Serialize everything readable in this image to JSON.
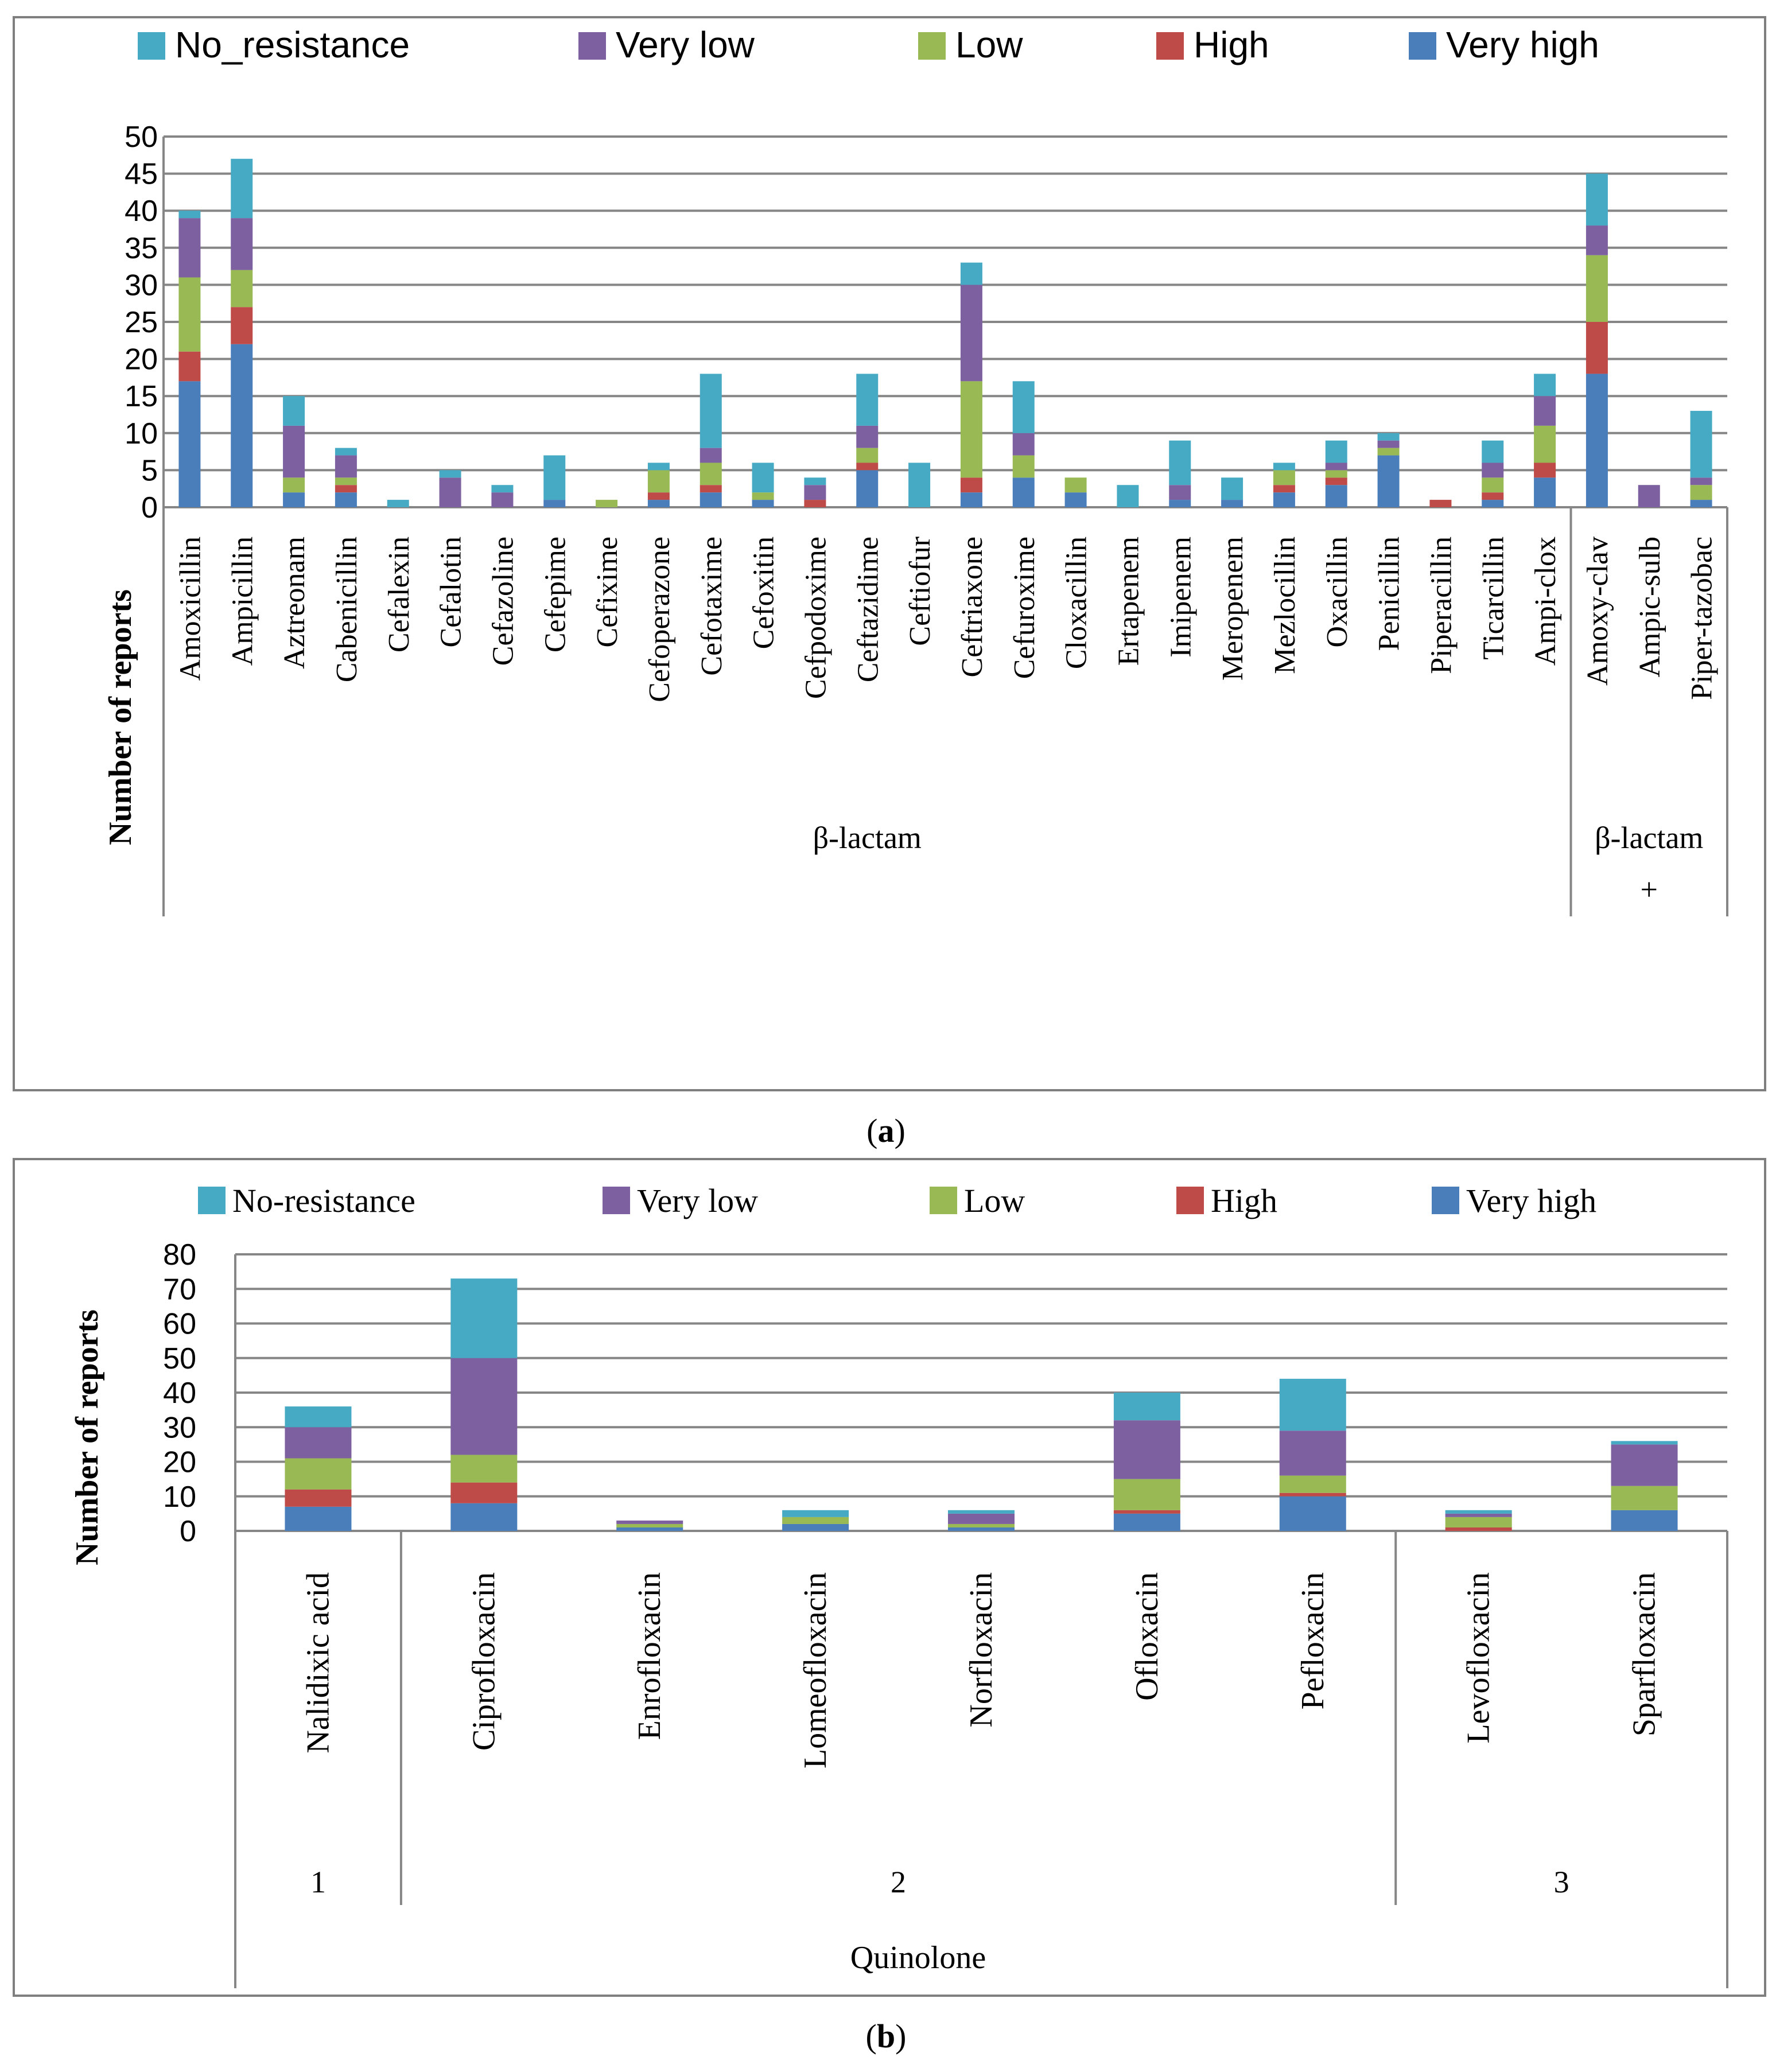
{
  "colors": {
    "very_high": "#4a7ebb",
    "high": "#be4b48",
    "low": "#98b954",
    "very_low": "#7d60a0",
    "no_resistance": "#46aac5",
    "grid": "#868686",
    "frame": "#7f7f7f",
    "text": "#000000"
  },
  "chart_data": [
    {
      "type": "bar",
      "stacked": true,
      "caption": "(a)",
      "caption_letter": "a",
      "title": "",
      "xlabel": "",
      "ylabel": "Number of reports",
      "ylim": [
        0,
        50
      ],
      "ytick_step": 5,
      "yticks": [
        "0",
        "5",
        "10",
        "15",
        "20",
        "25",
        "30",
        "35",
        "40",
        "45",
        "50"
      ],
      "grid": true,
      "legend_position": "top",
      "legend": [
        "No_resistance",
        "Very low",
        "Low",
        "High",
        "Very high"
      ],
      "categories": [
        "Amoxicillin",
        "Ampicillin",
        "Aztreonam",
        "Cabenicillin",
        "Cefalexin",
        "Cefalotin",
        "Cefazoline",
        "Cefepime",
        "Cefixime",
        "Cefoperazone",
        "Cefotaxime",
        "Cefoxitin",
        "Cefpodoxime",
        "Ceftazidime",
        "Ceftiofur",
        "Ceftriaxone",
        "Cefuroxime",
        "Cloxacillin",
        "Ertapenem",
        "Imipenem",
        "Meropenem",
        "Mezlocillin",
        "Oxacillin",
        "Penicillin",
        "Piperacillin",
        "Ticarcillin",
        "Ampi-clox",
        "Amoxy-clav",
        "Ampic-sulb",
        "Piper-tazobac"
      ],
      "groups": [
        {
          "label": "β-lactam",
          "label_line2": "",
          "start": 0,
          "end": 26
        },
        {
          "label": "β-lactam",
          "label_line2": "+",
          "start": 27,
          "end": 29
        }
      ],
      "series": [
        {
          "name": "Very high",
          "key": "very_high",
          "values": [
            17,
            22,
            2,
            2,
            0,
            0,
            0,
            1,
            0,
            1,
            2,
            1,
            0,
            5,
            0,
            2,
            4,
            2,
            0,
            1,
            1,
            2,
            3,
            7,
            0,
            1,
            4,
            18,
            0,
            1
          ]
        },
        {
          "name": "High",
          "key": "high",
          "values": [
            4,
            5,
            0,
            1,
            0,
            0,
            0,
            0,
            0,
            1,
            1,
            0,
            1,
            1,
            0,
            2,
            0,
            0,
            0,
            0,
            0,
            1,
            1,
            0,
            1,
            1,
            2,
            7,
            0,
            0
          ]
        },
        {
          "name": "Low",
          "key": "low",
          "values": [
            10,
            5,
            2,
            1,
            0,
            0,
            0,
            0,
            1,
            3,
            3,
            1,
            0,
            2,
            0,
            13,
            3,
            2,
            0,
            0,
            0,
            2,
            1,
            1,
            0,
            2,
            5,
            9,
            0,
            2
          ]
        },
        {
          "name": "Very low",
          "key": "very_low",
          "values": [
            8,
            7,
            7,
            3,
            0,
            4,
            2,
            0,
            0,
            0,
            2,
            0,
            2,
            3,
            0,
            13,
            3,
            0,
            0,
            2,
            0,
            0,
            1,
            1,
            0,
            2,
            4,
            4,
            3,
            1
          ]
        },
        {
          "name": "No_resistance",
          "key": "no_resistance",
          "values": [
            1,
            8,
            4,
            1,
            1,
            1,
            1,
            6,
            0,
            1,
            10,
            4,
            1,
            7,
            6,
            3,
            7,
            0,
            3,
            6,
            3,
            1,
            3,
            1,
            0,
            3,
            3,
            7,
            0,
            9
          ]
        }
      ]
    },
    {
      "type": "bar",
      "stacked": true,
      "caption": "(b)",
      "caption_letter": "b",
      "title": "",
      "xlabel": "Quinolone",
      "ylabel": "Number of reports",
      "ylim": [
        0,
        80
      ],
      "ytick_step": 10,
      "yticks": [
        "0",
        "10",
        "20",
        "30",
        "40",
        "50",
        "60",
        "70",
        "80"
      ],
      "grid": true,
      "legend_position": "top",
      "legend": [
        "No-resistance",
        "Very low",
        "Low",
        "High",
        "Very high"
      ],
      "categories": [
        "Nalidixic acid",
        "Ciprofloxacin",
        "Enrofloxacin",
        "Lomeofloxacin",
        "Norfloxacin",
        "Ofloxacin",
        "Pefloxacin",
        "Levofloxacin",
        "Sparfloxacin"
      ],
      "groups": [
        {
          "label": "1",
          "start": 0,
          "end": 0
        },
        {
          "label": "2",
          "start": 1,
          "end": 6
        },
        {
          "label": "3",
          "start": 7,
          "end": 8
        }
      ],
      "series": [
        {
          "name": "Very high",
          "key": "very_high",
          "values": [
            7,
            8,
            1,
            2,
            1,
            5,
            10,
            0,
            6
          ]
        },
        {
          "name": "High",
          "key": "high",
          "values": [
            5,
            6,
            0,
            0,
            0,
            1,
            1,
            1,
            0
          ]
        },
        {
          "name": "Low",
          "key": "low",
          "values": [
            9,
            8,
            1,
            2,
            1,
            9,
            5,
            3,
            7
          ]
        },
        {
          "name": "Very low",
          "key": "very_low",
          "values": [
            9,
            28,
            1,
            0,
            3,
            17,
            13,
            1,
            12
          ]
        },
        {
          "name": "No-resistance",
          "key": "no_resistance",
          "values": [
            6,
            23,
            0,
            2,
            1,
            8,
            15,
            1,
            1
          ]
        }
      ]
    }
  ]
}
